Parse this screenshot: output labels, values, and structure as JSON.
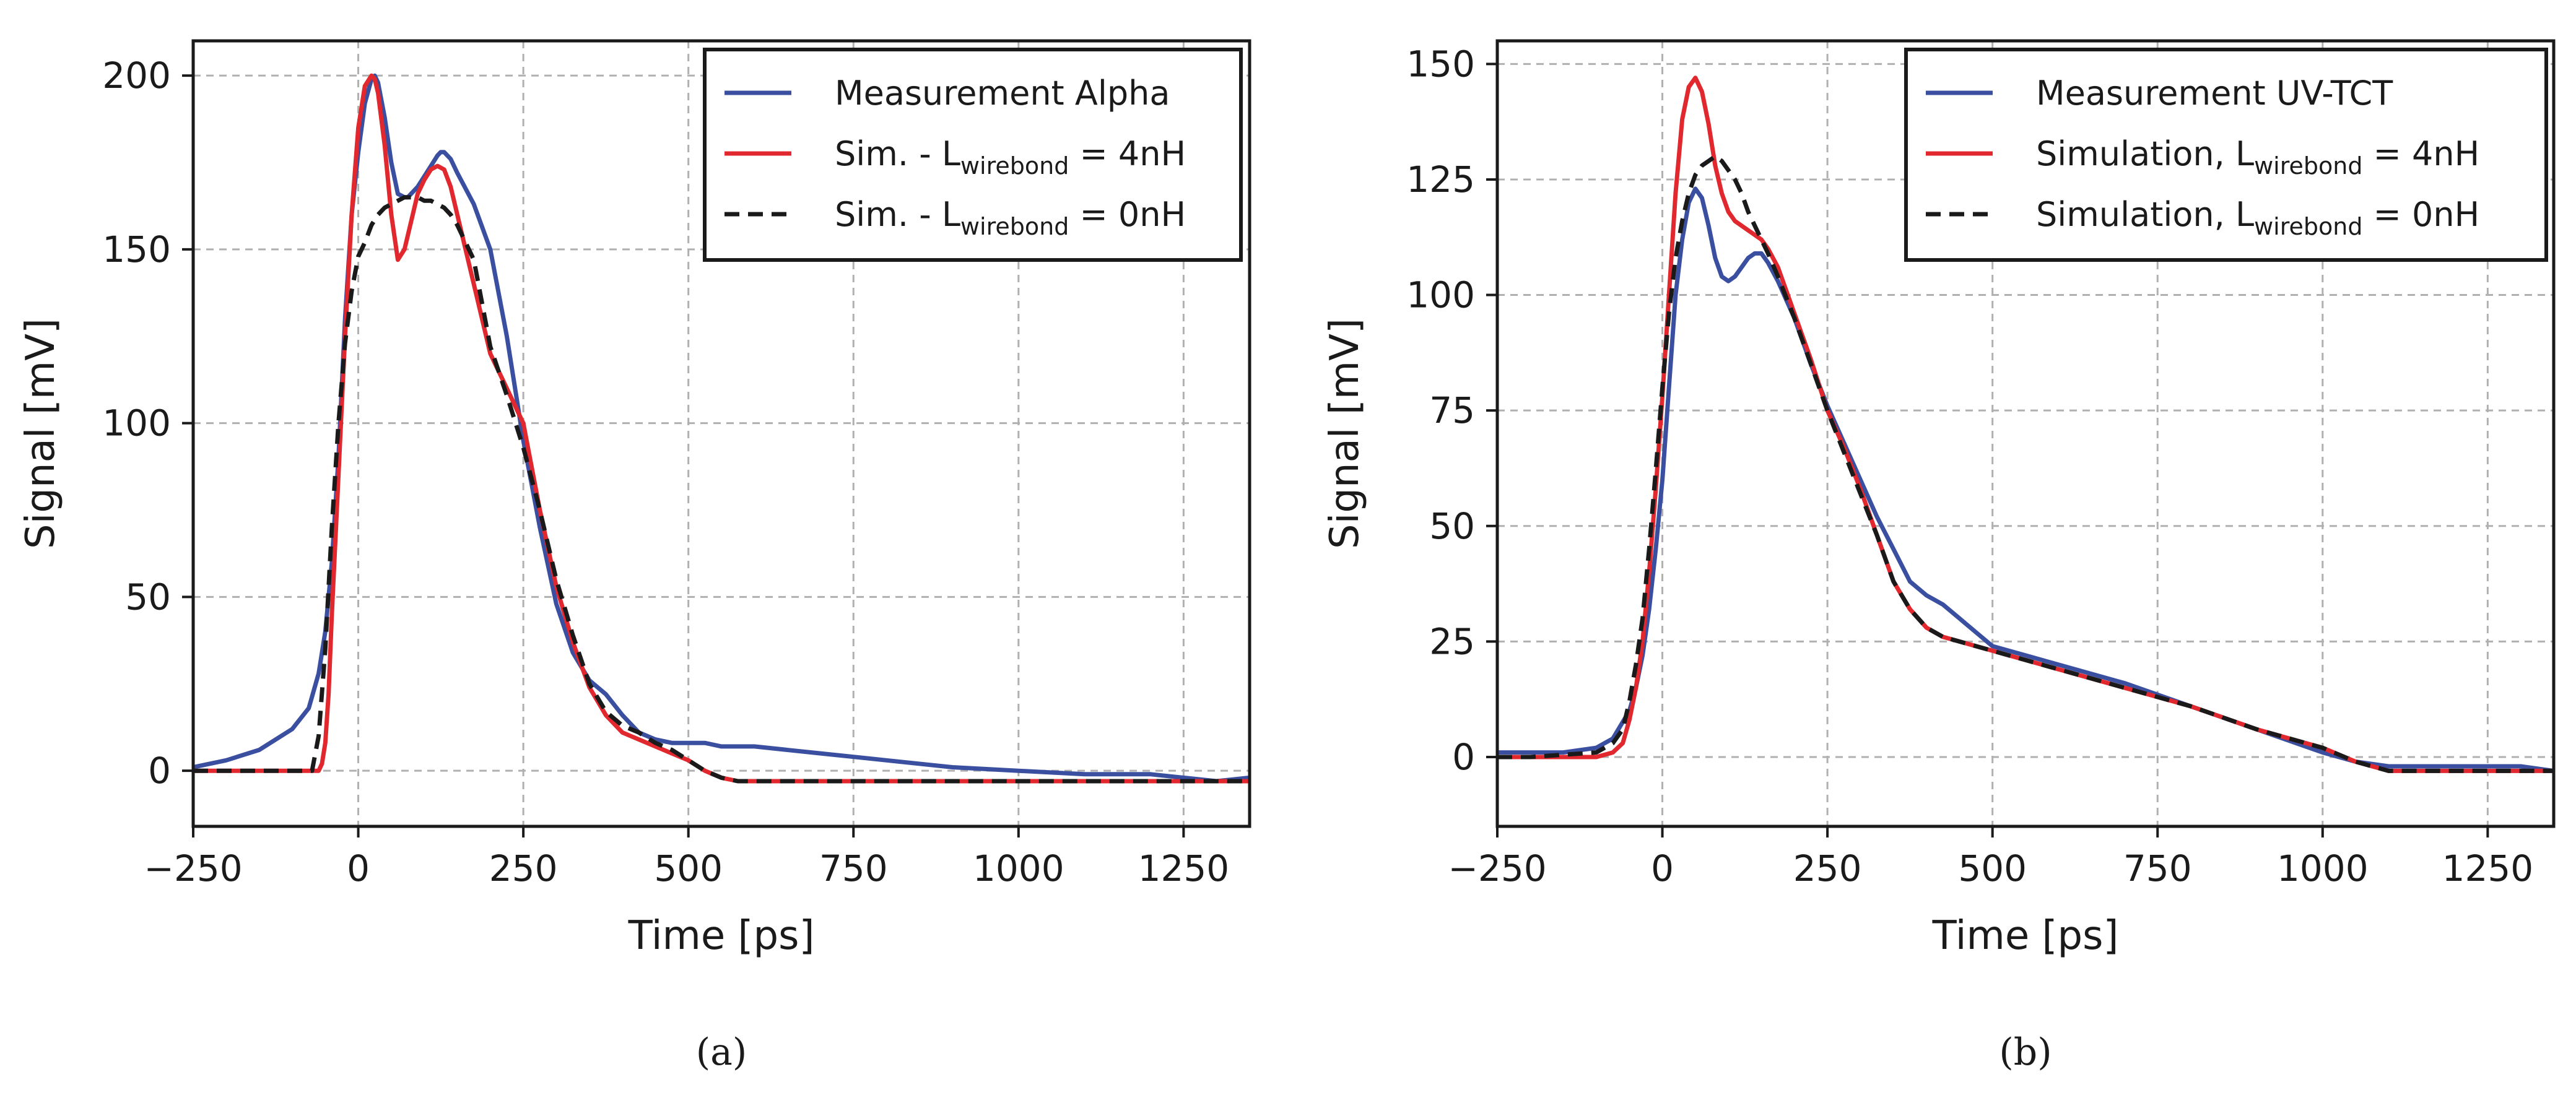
{
  "colors": {
    "measurement": "#3a4fa0",
    "simulation_4nH": "#e0282e",
    "simulation_0nH": "#1a1a1a",
    "grid": "#b0b0b0",
    "axis": "#1a1a1a"
  },
  "chart_data": [
    {
      "type": "line",
      "panel_label": "(a)",
      "xlabel": "Time [ps]",
      "ylabel": "Signal [mV]",
      "xlim": [
        -250,
        1350
      ],
      "ylim": [
        -16,
        210
      ],
      "xticks": [
        -250,
        0,
        250,
        500,
        750,
        1000,
        1250
      ],
      "xtick_labels": [
        "−250",
        "0",
        "250",
        "500",
        "750",
        "1000",
        "1250"
      ],
      "yticks": [
        0,
        50,
        100,
        150,
        200
      ],
      "ytick_labels": [
        "0",
        "50",
        "100",
        "150",
        "200"
      ],
      "grid": true,
      "legend_position": "top-right",
      "series": [
        {
          "name": "Measurement Alpha",
          "legend": {
            "main": "Measurement Alpha"
          },
          "color": "#3a4fa0",
          "dash": "solid",
          "x": [
            -250,
            -200,
            -150,
            -100,
            -75,
            -60,
            -50,
            -40,
            -30,
            -20,
            -10,
            0,
            10,
            20,
            25,
            30,
            40,
            50,
            60,
            70,
            75,
            80,
            90,
            100,
            110,
            120,
            125,
            130,
            140,
            150,
            175,
            200,
            225,
            250,
            275,
            300,
            325,
            350,
            375,
            400,
            425,
            450,
            475,
            500,
            525,
            550,
            600,
            700,
            800,
            900,
            1000,
            1100,
            1200,
            1250,
            1300,
            1350
          ],
          "y": [
            1,
            3,
            6,
            12,
            18,
            28,
            40,
            60,
            90,
            130,
            160,
            178,
            192,
            199,
            200,
            198,
            188,
            175,
            166,
            165,
            165,
            166,
            168,
            171,
            174,
            177,
            178,
            178,
            176,
            172,
            163,
            150,
            125,
            95,
            70,
            48,
            34,
            26,
            22,
            16,
            11,
            9,
            8,
            8,
            8,
            7,
            7,
            5,
            3,
            1,
            0,
            -1,
            -1,
            -2,
            -3,
            -2
          ]
        },
        {
          "name": "Sim. - L wirebond = 4nH",
          "legend": {
            "main": "Sim. - L",
            "sub": "wirebond",
            "rest": " = 4nH"
          },
          "color": "#e0282e",
          "dash": "solid",
          "x": [
            -250,
            -200,
            -100,
            -60,
            -55,
            -50,
            -45,
            -40,
            -30,
            -20,
            -10,
            0,
            10,
            20,
            25,
            30,
            40,
            50,
            60,
            70,
            80,
            90,
            100,
            110,
            120,
            130,
            140,
            150,
            175,
            200,
            225,
            250,
            275,
            300,
            325,
            350,
            375,
            400,
            425,
            450,
            475,
            500,
            525,
            550,
            575,
            600,
            700,
            800,
            900,
            1000,
            1100,
            1200,
            1250,
            1300,
            1350
          ],
          "y": [
            0,
            0,
            0,
            0,
            2,
            8,
            22,
            45,
            85,
            125,
            160,
            185,
            197,
            200,
            199,
            195,
            180,
            160,
            147,
            150,
            158,
            166,
            170,
            173,
            174,
            173,
            168,
            160,
            140,
            120,
            110,
            100,
            75,
            53,
            37,
            24,
            16,
            11,
            9,
            7,
            5,
            3,
            0,
            -2,
            -3,
            -3,
            -3,
            -3,
            -3,
            -3,
            -3,
            -3,
            -3,
            -3,
            -3
          ]
        },
        {
          "name": "Sim. - L wirebond = 0nH",
          "legend": {
            "main": "Sim. - L",
            "sub": "wirebond",
            "rest": " = 0nH"
          },
          "color": "#1a1a1a",
          "dash": "dashed",
          "x": [
            -250,
            -200,
            -100,
            -70,
            -60,
            -50,
            -40,
            -30,
            -20,
            -10,
            0,
            10,
            20,
            30,
            40,
            50,
            60,
            70,
            80,
            90,
            100,
            110,
            120,
            130,
            140,
            150,
            175,
            200,
            225,
            250,
            275,
            300,
            325,
            350,
            375,
            400,
            425,
            450,
            475,
            500,
            525,
            550,
            575,
            600,
            700,
            800,
            900,
            1000,
            1100,
            1200,
            1250,
            1300,
            1350
          ],
          "y": [
            0,
            0,
            0,
            0,
            10,
            35,
            70,
            100,
            123,
            138,
            148,
            152,
            157,
            160,
            162,
            163,
            164,
            165,
            165,
            165,
            164,
            164,
            163,
            162,
            160,
            157,
            147,
            122,
            108,
            93,
            75,
            55,
            39,
            25,
            17,
            13,
            11,
            8,
            6,
            3,
            0,
            -2,
            -3,
            -3,
            -3,
            -3,
            -3,
            -3,
            -3,
            -3,
            -3,
            -3,
            -3
          ]
        }
      ]
    },
    {
      "type": "line",
      "panel_label": "(b)",
      "xlabel": "Time [ps]",
      "ylabel": "Signal [mV]",
      "xlim": [
        -250,
        1350
      ],
      "ylim": [
        -15,
        155
      ],
      "xticks": [
        -250,
        0,
        250,
        500,
        750,
        1000,
        1250
      ],
      "xtick_labels": [
        "−250",
        "0",
        "250",
        "500",
        "750",
        "1000",
        "1250"
      ],
      "yticks": [
        0,
        25,
        50,
        75,
        100,
        125,
        150
      ],
      "ytick_labels": [
        "0",
        "25",
        "50",
        "75",
        "100",
        "125",
        "150"
      ],
      "grid": true,
      "legend_position": "top-right",
      "series": [
        {
          "name": "Measurement UV-TCT",
          "legend": {
            "main": "Measurement UV-TCT"
          },
          "color": "#3a4fa0",
          "dash": "solid",
          "x": [
            -250,
            -200,
            -150,
            -100,
            -75,
            -50,
            -40,
            -30,
            -20,
            -10,
            0,
            10,
            20,
            30,
            40,
            50,
            60,
            70,
            80,
            90,
            100,
            110,
            120,
            130,
            140,
            150,
            160,
            175,
            200,
            225,
            250,
            275,
            300,
            325,
            350,
            375,
            400,
            425,
            450,
            475,
            500,
            550,
            600,
            700,
            800,
            900,
            1000,
            1050,
            1100,
            1150,
            1200,
            1250,
            1300,
            1350
          ],
          "y": [
            1,
            1,
            1,
            2,
            4,
            10,
            15,
            22,
            32,
            45,
            60,
            80,
            100,
            112,
            120,
            123,
            121,
            115,
            108,
            104,
            103,
            104,
            106,
            108,
            109,
            109,
            107,
            103,
            95,
            85,
            76,
            68,
            60,
            52,
            45,
            38,
            35,
            33,
            30,
            27,
            24,
            22,
            20,
            16,
            11,
            6,
            1,
            -1,
            -2,
            -2,
            -2,
            -2,
            -2,
            -3
          ]
        },
        {
          "name": "Simulation, L wirebond = 4nH",
          "legend": {
            "main": "Simulation, L",
            "sub": "wirebond",
            "rest": " = 4nH"
          },
          "color": "#e0282e",
          "dash": "solid",
          "x": [
            -250,
            -200,
            -100,
            -75,
            -60,
            -50,
            -40,
            -30,
            -20,
            -10,
            0,
            10,
            20,
            30,
            40,
            50,
            60,
            70,
            80,
            90,
            100,
            110,
            120,
            130,
            140,
            150,
            160,
            175,
            200,
            225,
            250,
            275,
            300,
            325,
            350,
            375,
            400,
            425,
            450,
            475,
            500,
            550,
            600,
            700,
            800,
            900,
            1000,
            1050,
            1100,
            1150,
            1200,
            1250,
            1300,
            1350
          ],
          "y": [
            0,
            0,
            0,
            1,
            3,
            8,
            15,
            25,
            40,
            58,
            78,
            100,
            122,
            138,
            145,
            147,
            144,
            137,
            128,
            122,
            118,
            116,
            115,
            114,
            113,
            112,
            110,
            106,
            96,
            86,
            75,
            67,
            58,
            48,
            38,
            32,
            28,
            26,
            25,
            24,
            23,
            21,
            19,
            15,
            11,
            6,
            2,
            -1,
            -3,
            -3,
            -3,
            -3,
            -3,
            -3
          ]
        },
        {
          "name": "Simulation, L wirebond = 0nH",
          "legend": {
            "main": "Simulation, L",
            "sub": "wirebond",
            "rest": " = 0nH"
          },
          "color": "#1a1a1a",
          "dash": "dashed",
          "x": [
            -250,
            -200,
            -100,
            -75,
            -60,
            -50,
            -40,
            -30,
            -20,
            -10,
            0,
            10,
            20,
            30,
            40,
            50,
            60,
            70,
            80,
            90,
            100,
            110,
            120,
            130,
            140,
            150,
            160,
            175,
            200,
            225,
            250,
            275,
            300,
            325,
            350,
            375,
            400,
            425,
            450,
            475,
            500,
            550,
            600,
            700,
            800,
            900,
            1000,
            1050,
            1100,
            1150,
            1200,
            1250,
            1300,
            1350
          ],
          "y": [
            0,
            0,
            1,
            3,
            6,
            12,
            20,
            30,
            45,
            62,
            80,
            96,
            108,
            116,
            122,
            126,
            128,
            129,
            130,
            129,
            127,
            125,
            122,
            118,
            115,
            112,
            109,
            104,
            95,
            85,
            75,
            66,
            57,
            48,
            38,
            32,
            28,
            26,
            25,
            24,
            23,
            21,
            19,
            15,
            11,
            6,
            2,
            -1,
            -3,
            -3,
            -3,
            -3,
            -3,
            -3
          ]
        }
      ]
    }
  ]
}
